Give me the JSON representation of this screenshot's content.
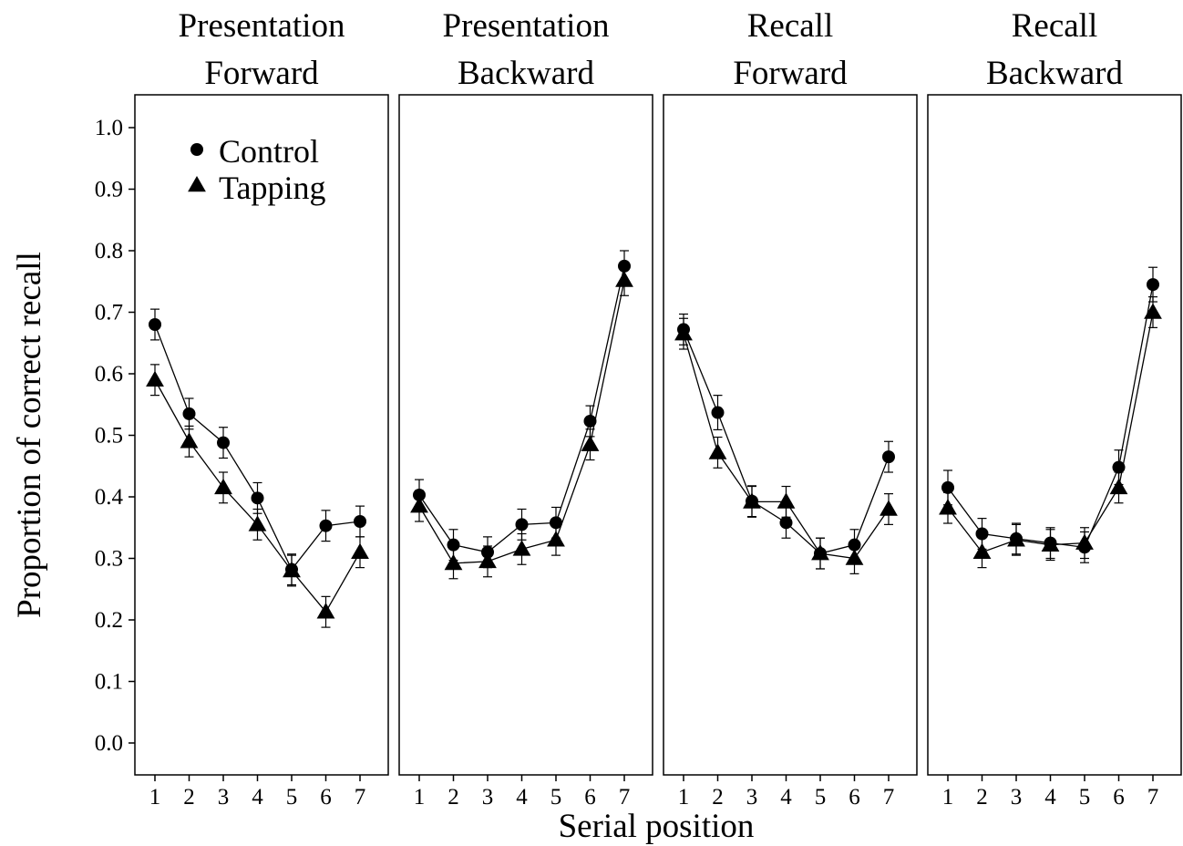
{
  "chart_data": {
    "type": "line",
    "xlabel": "Serial position",
    "ylabel": "Proportion of correct recall",
    "ylim": [
      0.0,
      1.0
    ],
    "yticks": [
      "0.0",
      "0.1",
      "0.2",
      "0.3",
      "0.4",
      "0.5",
      "0.6",
      "0.7",
      "0.8",
      "0.9",
      "1.0"
    ],
    "x": [
      1,
      2,
      3,
      4,
      5,
      6,
      7
    ],
    "xticks": [
      "1",
      "2",
      "3",
      "4",
      "5",
      "6",
      "7"
    ],
    "grid": false,
    "legend": {
      "placement": "top-left of first panel",
      "entries": [
        "Control",
        "Tapping"
      ]
    },
    "panels": [
      {
        "title_line1": "Presentation",
        "title_line2": "Forward",
        "series": [
          {
            "name": "Control",
            "marker": "circle",
            "values": [
              0.68,
              0.535,
              0.488,
              0.398,
              0.282,
              0.353,
              0.36
            ],
            "errors": [
              0.025,
              0.025,
              0.025,
              0.025,
              0.025,
              0.025,
              0.025
            ]
          },
          {
            "name": "Tapping",
            "marker": "triangle",
            "values": [
              0.59,
              0.49,
              0.415,
              0.355,
              0.28,
              0.213,
              0.31
            ],
            "errors": [
              0.025,
              0.025,
              0.025,
              0.025,
              0.025,
              0.025,
              0.025
            ]
          }
        ]
      },
      {
        "title_line1": "Presentation",
        "title_line2": "Backward",
        "series": [
          {
            "name": "Control",
            "marker": "circle",
            "values": [
              0.403,
              0.322,
              0.31,
              0.355,
              0.358,
              0.523,
              0.775
            ],
            "errors": [
              0.025,
              0.025,
              0.025,
              0.025,
              0.025,
              0.025,
              0.025
            ]
          },
          {
            "name": "Tapping",
            "marker": "triangle",
            "values": [
              0.385,
              0.292,
              0.295,
              0.315,
              0.33,
              0.485,
              0.752
            ],
            "errors": [
              0.025,
              0.025,
              0.025,
              0.025,
              0.025,
              0.025,
              0.025
            ]
          }
        ]
      },
      {
        "title_line1": "Recall",
        "title_line2": "Forward",
        "series": [
          {
            "name": "Control",
            "marker": "circle",
            "values": [
              0.672,
              0.537,
              0.393,
              0.358,
              0.308,
              0.322,
              0.465
            ],
            "errors": [
              0.025,
              0.028,
              0.025,
              0.025,
              0.025,
              0.025,
              0.025
            ]
          },
          {
            "name": "Tapping",
            "marker": "triangle",
            "values": [
              0.665,
              0.472,
              0.392,
              0.392,
              0.308,
              0.3,
              0.38
            ],
            "errors": [
              0.025,
              0.025,
              0.025,
              0.025,
              0.025,
              0.025,
              0.025
            ]
          }
        ]
      },
      {
        "title_line1": "Recall",
        "title_line2": "Backward",
        "series": [
          {
            "name": "Control",
            "marker": "circle",
            "values": [
              0.415,
              0.34,
              0.332,
              0.325,
              0.318,
              0.448,
              0.745
            ],
            "errors": [
              0.028,
              0.025,
              0.025,
              0.025,
              0.025,
              0.028,
              0.028
            ]
          },
          {
            "name": "Tapping",
            "marker": "triangle",
            "values": [
              0.382,
              0.31,
              0.33,
              0.322,
              0.325,
              0.415,
              0.7
            ],
            "errors": [
              0.025,
              0.025,
              0.025,
              0.025,
              0.025,
              0.025,
              0.025
            ]
          }
        ]
      }
    ]
  }
}
